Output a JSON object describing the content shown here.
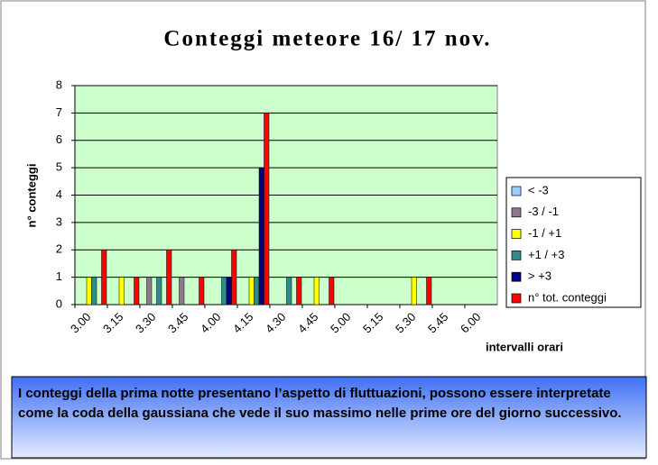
{
  "chart_data": {
    "type": "bar",
    "title": "Conteggi meteore 16/ 17 nov.",
    "y_label": "n° conteggi",
    "x_label": "intervalli orari",
    "categories": [
      "3.00",
      "3.15",
      "3.30",
      "3.45",
      "4.00",
      "4.15",
      "4.30",
      "4.45",
      "5.00",
      "5.15",
      "5.30",
      "5.45",
      "6.00"
    ],
    "series": [
      {
        "name": "< -3",
        "color": "#99ccff",
        "values": [
          null,
          null,
          null,
          null,
          null,
          null,
          null,
          null,
          null,
          null,
          null,
          null,
          null
        ]
      },
      {
        "name": "-3 / -1",
        "color": "#8c7a8c",
        "values": [
          null,
          null,
          1,
          1,
          null,
          null,
          null,
          null,
          null,
          null,
          null,
          null,
          null
        ]
      },
      {
        "name": "-1 / +1",
        "color": "#ffff00",
        "values": [
          1,
          1,
          null,
          null,
          null,
          1,
          null,
          1,
          null,
          null,
          1,
          null,
          null
        ]
      },
      {
        "name": "+1 / +3",
        "color": "#2f8c8c",
        "values": [
          1,
          null,
          1,
          null,
          1,
          1,
          1,
          null,
          null,
          null,
          null,
          null,
          null
        ]
      },
      {
        "name": "> +3",
        "color": "#000080",
        "values": [
          null,
          null,
          null,
          null,
          1,
          5,
          null,
          null,
          null,
          null,
          null,
          null,
          null
        ]
      },
      {
        "name": "n° tot. conteggi",
        "color": "#ff0000",
        "values": [
          2,
          1,
          2,
          1,
          2,
          7,
          1,
          1,
          null,
          null,
          1,
          null,
          null
        ]
      }
    ],
    "ylim": [
      0,
      8
    ],
    "yticks": [
      0,
      1,
      2,
      3,
      4,
      5,
      6,
      7,
      8
    ],
    "grid": true,
    "plot_background": "#ccffcc",
    "legend": "right"
  },
  "note": "I conteggi della prima notte presentano l’aspetto di fluttuazioni, possono essere interpretate come la coda della gaussiana che vede il suo massimo nelle prime ore del giorno successivo."
}
